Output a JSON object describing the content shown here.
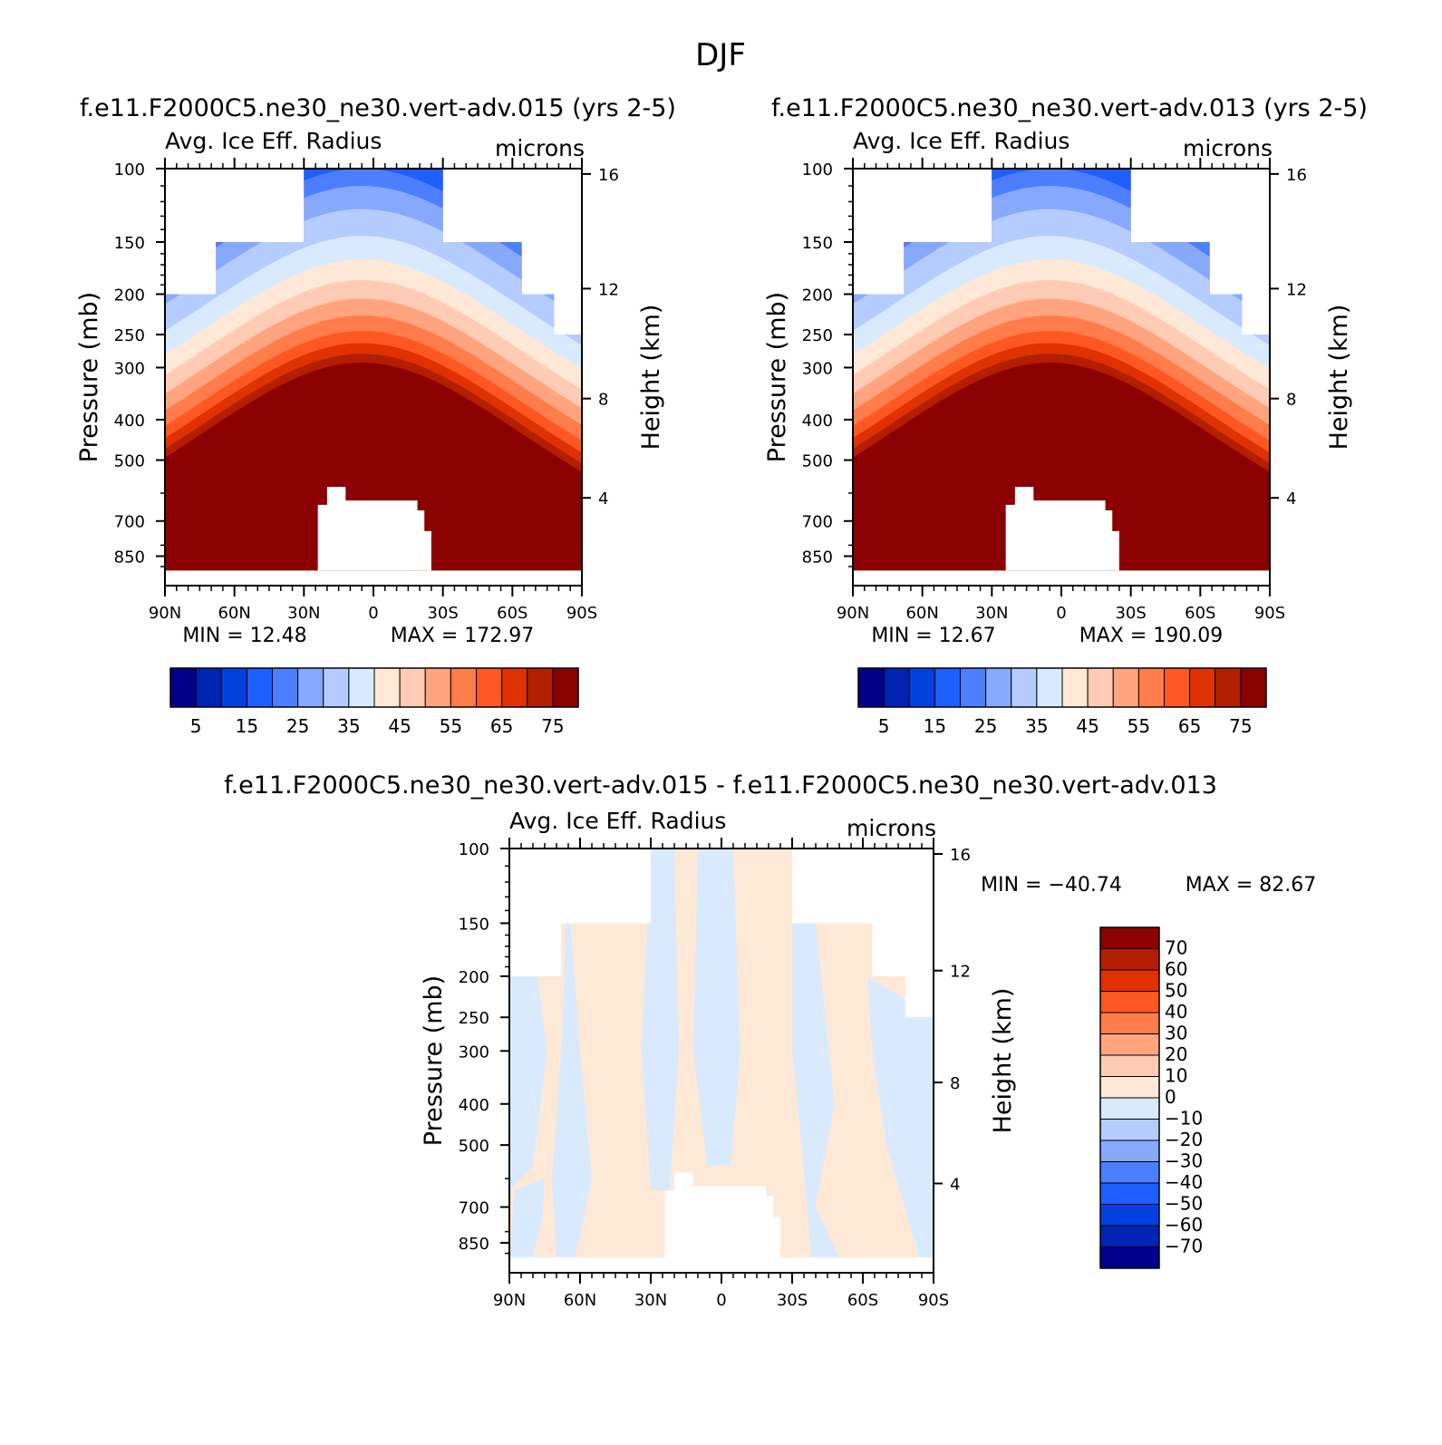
{
  "title": "DJF",
  "colors": {
    "panel_scale": [
      "#00008b",
      "#0023b3",
      "#0041e0",
      "#1e5fff",
      "#4b7fff",
      "#87a8ff",
      "#b4ccff",
      "#d9eaff",
      "#ffe9d6",
      "#ffcbb4",
      "#ffa47f",
      "#ff7c4b",
      "#ff5721",
      "#e03200",
      "#b31e00",
      "#8b0000"
    ],
    "diff_scale": [
      "#00008b",
      "#0023b3",
      "#0041e0",
      "#1e5fff",
      "#4b7fff",
      "#87a8ff",
      "#b4ccff",
      "#d9eaff",
      "#ffe9d6",
      "#ffcbb4",
      "#ffa47f",
      "#ff7c4b",
      "#ff5721",
      "#e03200",
      "#b31e00",
      "#8b0000"
    ]
  },
  "chart_data": [
    {
      "type": "heatmap",
      "title": "f.e11.F2000C5.ne30_ne30.vert-adv.015 (yrs 2-5)",
      "subtitle_left": "Avg. Ice Eff. Radius",
      "subtitle_right": "microns",
      "ylabel": "Pressure (mb)",
      "ylabel_right": "Height (km)",
      "x_ticks": [
        "90N",
        "60N",
        "30N",
        "0",
        "30S",
        "60S",
        "90S"
      ],
      "y_ticks": [
        "100",
        "150",
        "200",
        "250",
        "300",
        "400",
        "500",
        "700",
        "850"
      ],
      "y_right_ticks": [
        "16",
        "12",
        "8",
        "4"
      ],
      "min_text": "MIN =   12.48",
      "max_text": "MAX = 172.97",
      "colorbar_labels": [
        "5",
        "15",
        "25",
        "35",
        "45",
        "55",
        "65",
        "75"
      ],
      "contour_levels": [
        5,
        10,
        15,
        20,
        25,
        30,
        35,
        40,
        45,
        50,
        55,
        60,
        65,
        70,
        75
      ],
      "field_description_levels_hPa": {
        "cloud_top": 100,
        "ground_mask_top": 600
      }
    },
    {
      "type": "heatmap",
      "title": "f.e11.F2000C5.ne30_ne30.vert-adv.013 (yrs 2-5)",
      "subtitle_left": "Avg. Ice Eff. Radius",
      "subtitle_right": "microns",
      "ylabel": "Pressure (mb)",
      "ylabel_right": "Height (km)",
      "x_ticks": [
        "90N",
        "60N",
        "30N",
        "0",
        "30S",
        "60S",
        "90S"
      ],
      "y_ticks": [
        "100",
        "150",
        "200",
        "250",
        "300",
        "400",
        "500",
        "700",
        "850"
      ],
      "y_right_ticks": [
        "16",
        "12",
        "8",
        "4"
      ],
      "min_text": "MIN =   12.67",
      "max_text": "MAX = 190.09",
      "colorbar_labels": [
        "5",
        "15",
        "25",
        "35",
        "45",
        "55",
        "65",
        "75"
      ],
      "contour_levels": [
        5,
        10,
        15,
        20,
        25,
        30,
        35,
        40,
        45,
        50,
        55,
        60,
        65,
        70,
        75
      ]
    },
    {
      "type": "heatmap",
      "title": "f.e11.F2000C5.ne30_ne30.vert-adv.015 - f.e11.F2000C5.ne30_ne30.vert-adv.013",
      "subtitle_left": "Avg. Ice Eff. Radius",
      "subtitle_right": "microns",
      "ylabel": "Pressure (mb)",
      "ylabel_right": "Height (km)",
      "x_ticks": [
        "90N",
        "60N",
        "30N",
        "0",
        "30S",
        "60S",
        "90S"
      ],
      "y_ticks": [
        "100",
        "150",
        "200",
        "250",
        "300",
        "400",
        "500",
        "700",
        "850"
      ],
      "y_right_ticks": [
        "16",
        "12",
        "8",
        "4"
      ],
      "min_text": "MIN = −40.74",
      "max_text": "MAX =   82.67",
      "colorbar_labels": [
        "70",
        "60",
        "50",
        "40",
        "30",
        "20",
        "10",
        "0",
        "−10",
        "−20",
        "−30",
        "−40",
        "−50",
        "−60",
        "−70"
      ],
      "contour_levels": [
        -70,
        -60,
        -50,
        -40,
        -30,
        -20,
        -10,
        0,
        10,
        20,
        30,
        40,
        50,
        60,
        70
      ]
    }
  ]
}
